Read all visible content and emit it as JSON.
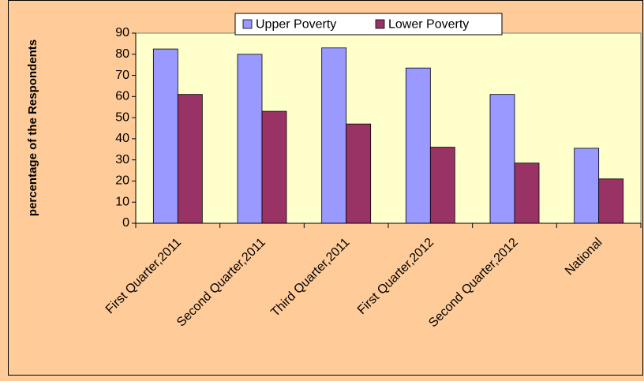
{
  "chart_data": {
    "type": "bar",
    "y_label": "percentage of the Respondents",
    "categories": [
      "First Quarter,2011",
      "Second Quarter,2011",
      "Third Quarter,2011",
      "First Quarter,2012",
      "Second Quarter,2012",
      "National"
    ],
    "series": [
      {
        "name": "Upper Poverty",
        "color": "#9999ff",
        "values": [
          82.5,
          80,
          83,
          73.5,
          61,
          35.5
        ]
      },
      {
        "name": "Lower Poverty",
        "color": "#993366",
        "values": [
          61,
          53,
          47,
          36,
          28.5,
          21
        ]
      }
    ],
    "ylim": [
      0,
      90
    ],
    "yticks": [
      0,
      10,
      20,
      30,
      40,
      50,
      60,
      70,
      80,
      90
    ],
    "legend": "top"
  }
}
